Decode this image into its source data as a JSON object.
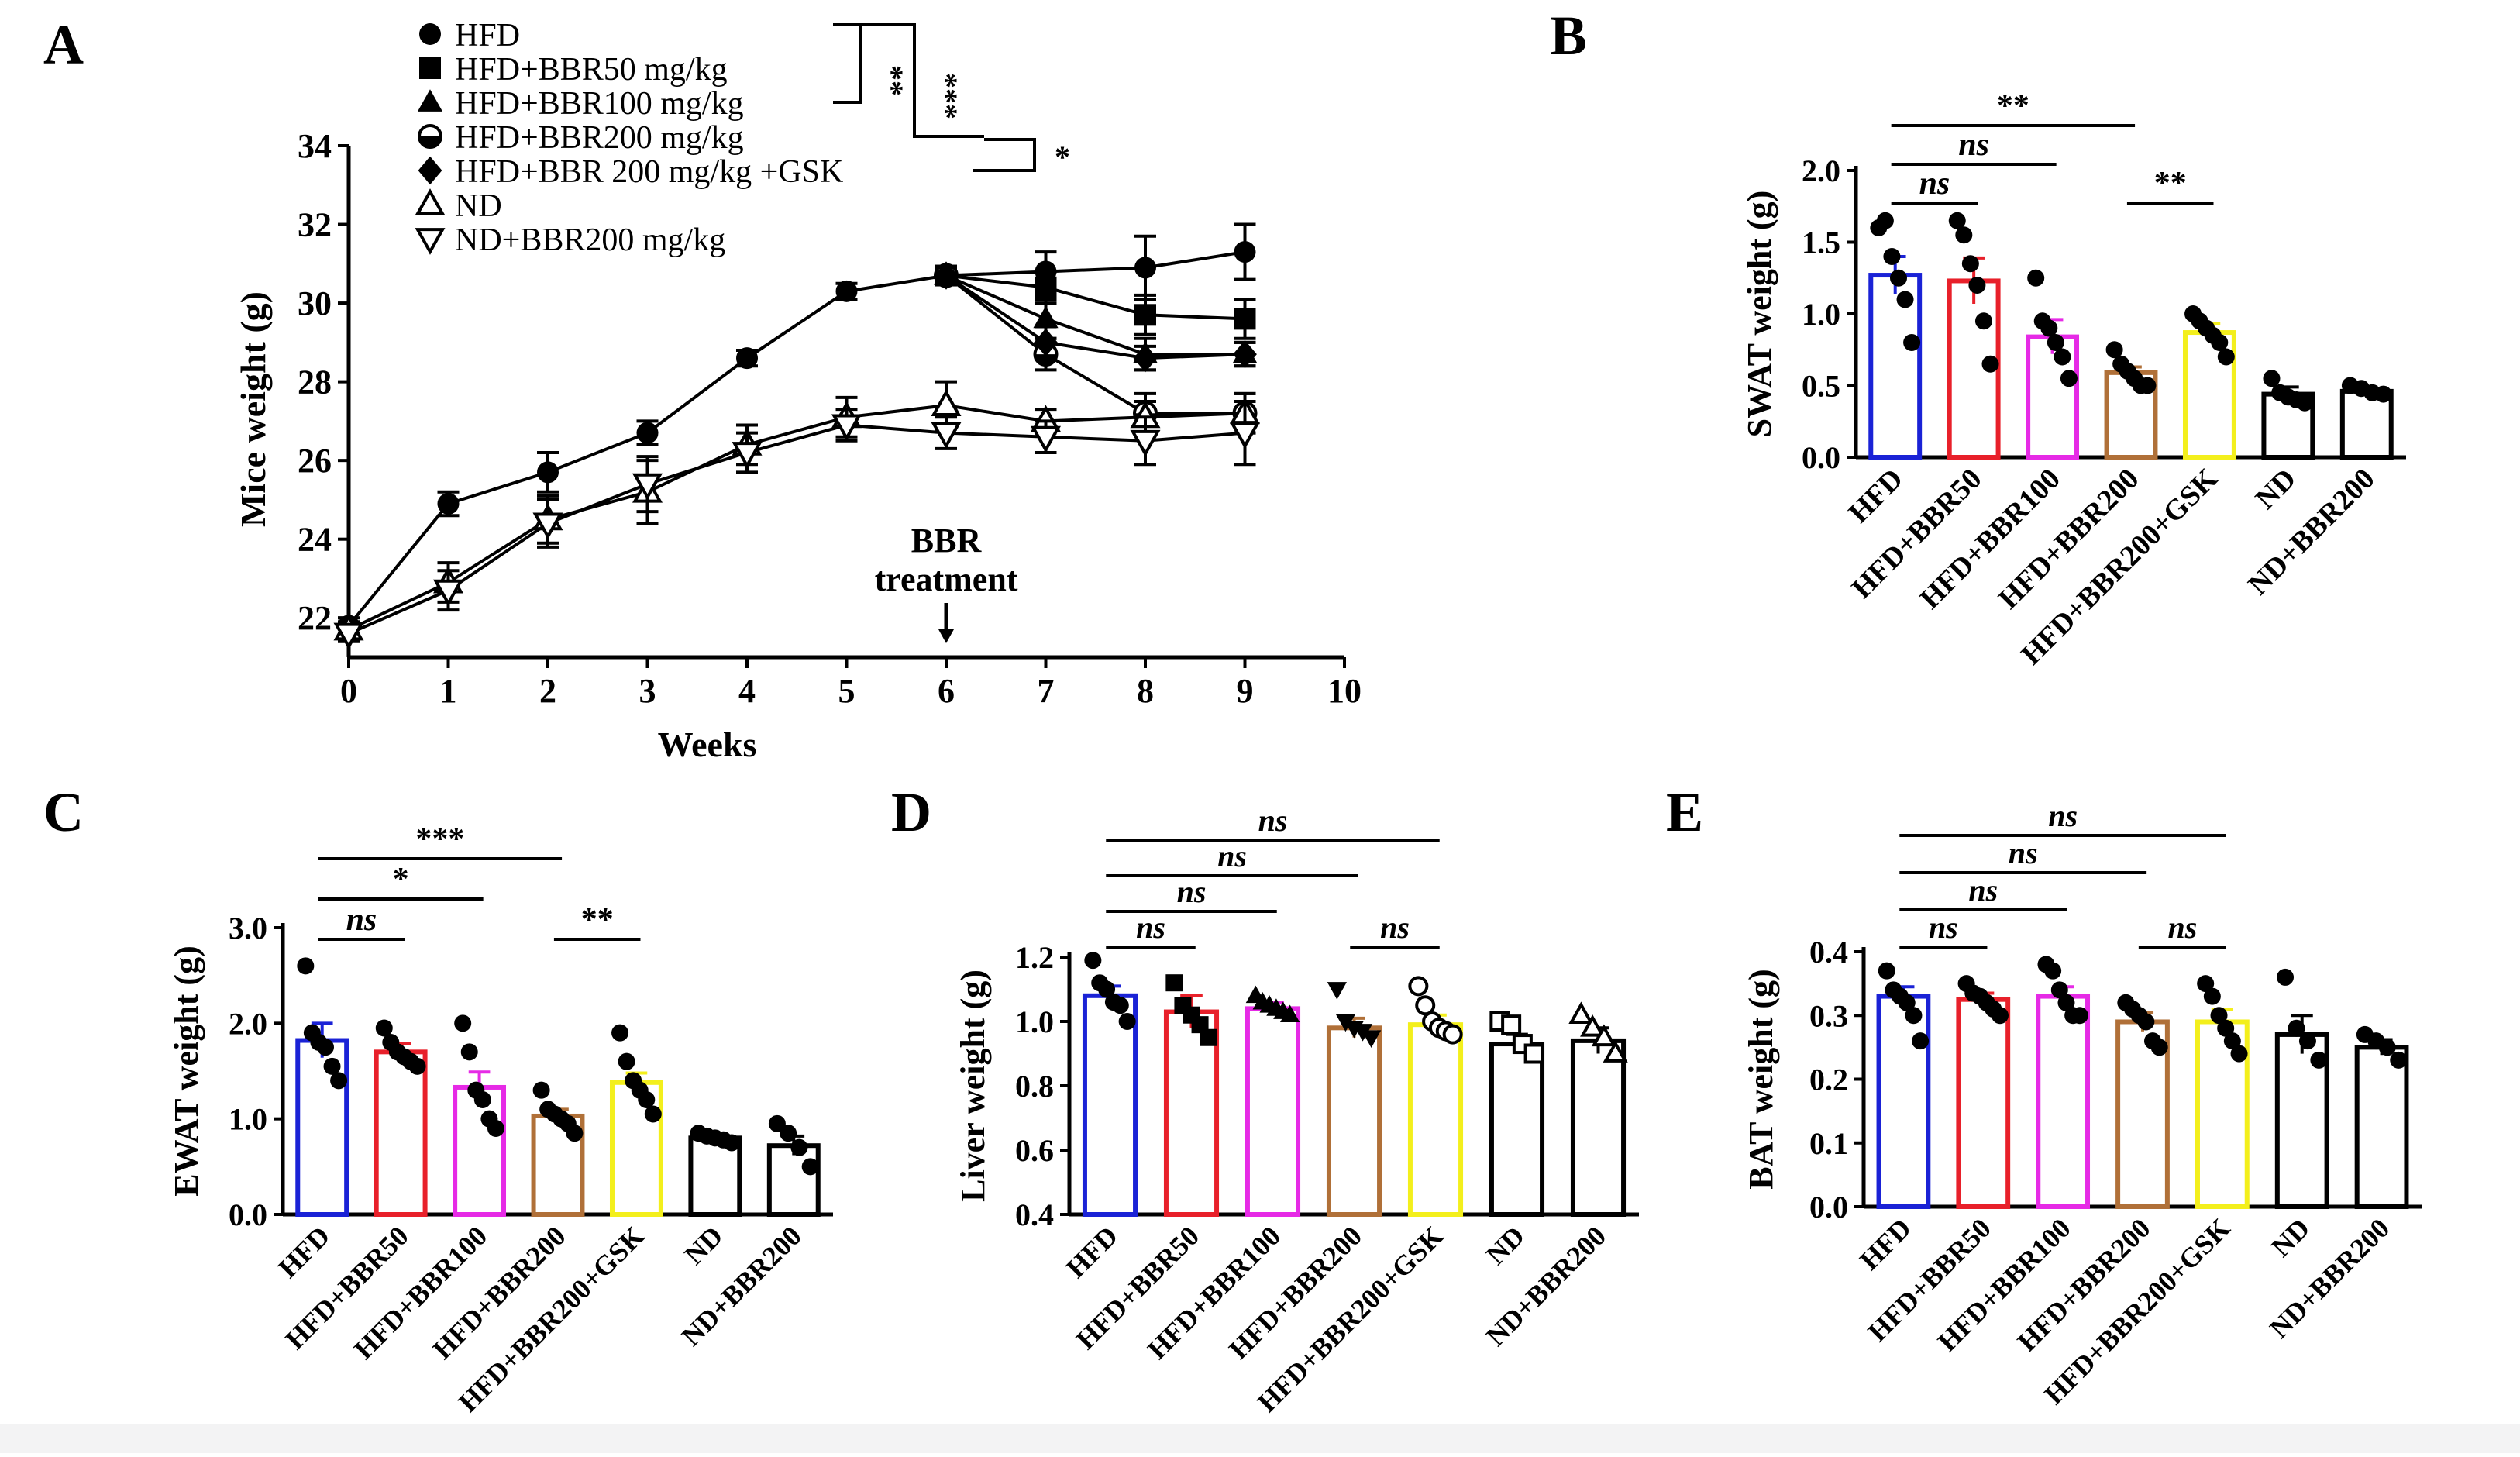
{
  "colors": {
    "ink": "#000000",
    "HFD": "#1a22d6",
    "HFD+BBR50": "#e8202a",
    "HFD+BBR100": "#e62ae6",
    "HFD+BBR200": "#b07038",
    "HFD+BBR200+GSK": "#f3ef1c",
    "ND": "#000000",
    "ND+BBR200": "#000000"
  },
  "bar_groups": [
    "HFD",
    "HFD+BBR50",
    "HFD+BBR100",
    "HFD+BBR200",
    "HFD+BBR200+GSK",
    "ND",
    "ND+BBR200"
  ],
  "panels": {
    "A": {
      "letter": "A",
      "title": "",
      "xlabel": "Weeks",
      "ylabel": "Mice weight (g)",
      "annotation": {
        "line1": "BBR",
        "line2": "treatment",
        "week": 6
      }
    },
    "B": {
      "letter": "B",
      "ylabel": "SWAT weight (g)"
    },
    "C": {
      "letter": "C",
      "ylabel": "EWAT weight (g)"
    },
    "D": {
      "letter": "D",
      "ylabel": "Liver weight (g)"
    },
    "E": {
      "letter": "E",
      "ylabel": "BAT weight (g)"
    }
  },
  "chart_data": [
    {
      "panel": "A",
      "type": "line",
      "title": "",
      "xlabel": "Weeks",
      "ylabel": "Mice weight (g)",
      "xlim": [
        0,
        10
      ],
      "ylim": [
        21,
        34
      ],
      "xticks": [
        "0",
        "1",
        "2",
        "3",
        "4",
        "5",
        "6",
        "7",
        "8",
        "9",
        "10"
      ],
      "yticks": [
        "22",
        "24",
        "26",
        "28",
        "30",
        "32",
        "34"
      ],
      "x": [
        0,
        1,
        2,
        3,
        4,
        5,
        6,
        7,
        8,
        9
      ],
      "series": [
        {
          "name": "HFD",
          "marker": "circle",
          "values": [
            21.8,
            24.9,
            25.7,
            26.7,
            28.6,
            30.3,
            30.7,
            30.8,
            30.9,
            31.3
          ],
          "errors": [
            0.2,
            0.3,
            0.5,
            0.3,
            0.2,
            0.2,
            0.2,
            0.5,
            0.8,
            0.7
          ]
        },
        {
          "name": "HFD+BBR50 mg/kg",
          "marker": "square",
          "values": [
            null,
            null,
            null,
            null,
            null,
            null,
            30.7,
            30.4,
            29.7,
            29.6
          ],
          "errors": [
            0,
            0,
            0,
            0,
            0,
            0,
            0.2,
            0.4,
            0.5,
            0.5
          ]
        },
        {
          "name": "HFD+BBR100 mg/kg",
          "marker": "triangle",
          "values": [
            null,
            null,
            null,
            null,
            null,
            null,
            30.7,
            29.6,
            28.7,
            28.7
          ],
          "errors": [
            0,
            0,
            0,
            0,
            0,
            0,
            0.2,
            0.5,
            0.4,
            0.3
          ]
        },
        {
          "name": "HFD+BBR200 mg/kg",
          "marker": "half-circle",
          "values": [
            null,
            null,
            null,
            null,
            null,
            null,
            30.7,
            28.7,
            27.2,
            27.2
          ],
          "errors": [
            0,
            0,
            0,
            0,
            0,
            0,
            0.2,
            0.4,
            0.5,
            0.5
          ]
        },
        {
          "name": "HFD+BBR 200 mg/kg +GSK",
          "marker": "diamond",
          "values": [
            null,
            null,
            null,
            null,
            null,
            null,
            30.7,
            29.0,
            28.6,
            28.7
          ],
          "errors": [
            0,
            0,
            0,
            0,
            0,
            0,
            0.2,
            0.4,
            0.3,
            0.3
          ]
        },
        {
          "name": "ND",
          "marker": "open-triangle",
          "values": [
            21.7,
            22.9,
            24.5,
            25.2,
            26.4,
            27.1,
            27.4,
            27.0,
            27.1,
            27.2
          ],
          "errors": [
            0.2,
            0.5,
            0.6,
            0.8,
            0.5,
            0.5,
            0.6,
            0.3,
            0.4,
            0.5
          ]
        },
        {
          "name": "ND+BBR200 mg/kg",
          "marker": "open-inverted-triangle",
          "values": [
            21.6,
            22.7,
            24.4,
            25.4,
            26.2,
            26.9,
            26.7,
            26.6,
            26.5,
            26.7
          ],
          "errors": [
            0.2,
            0.5,
            0.6,
            0.7,
            0.5,
            0.4,
            0.4,
            0.4,
            0.6,
            0.8
          ]
        }
      ],
      "significance": [
        {
          "label": "**",
          "between": [
            "HFD",
            "HFD+BBR100 mg/kg"
          ]
        },
        {
          "label": "***",
          "between": [
            "HFD",
            "HFD+BBR200 mg/kg"
          ]
        },
        {
          "label": "*",
          "between": [
            "HFD+BBR200 mg/kg",
            "HFD+BBR 200 mg/kg +GSK"
          ]
        }
      ]
    },
    {
      "panel": "B",
      "type": "bar",
      "ylabel": "SWAT weight (g)",
      "ylim": [
        0,
        2.0
      ],
      "yticks": [
        "0.0",
        "0.5",
        "1.0",
        "1.5",
        "2.0"
      ],
      "categories": [
        "HFD",
        "HFD+BBR50",
        "HFD+BBR100",
        "HFD+BBR200",
        "HFD+BBR200+GSK",
        "ND",
        "ND+BBR200"
      ],
      "values": [
        1.27,
        1.23,
        0.84,
        0.59,
        0.87,
        0.44,
        0.46
      ],
      "errors": [
        0.13,
        0.16,
        0.12,
        0.04,
        0.06,
        0.05,
        0.03
      ],
      "points": [
        [
          1.6,
          1.65,
          1.4,
          1.25,
          1.1,
          0.8
        ],
        [
          1.65,
          1.55,
          1.35,
          1.2,
          0.95,
          0.65
        ],
        [
          1.25,
          0.95,
          0.9,
          0.8,
          0.7,
          0.55
        ],
        [
          0.75,
          0.65,
          0.6,
          0.55,
          0.5,
          0.5
        ],
        [
          1.0,
          0.95,
          0.9,
          0.85,
          0.8,
          0.7
        ],
        [
          0.55,
          0.45,
          0.42,
          0.4,
          0.38
        ],
        [
          0.5,
          0.48,
          0.45,
          0.44
        ]
      ],
      "point_markers": [
        "filled",
        "filled",
        "filled",
        "filled",
        "filled",
        "filled",
        "filled"
      ],
      "significance": [
        {
          "label": "ns",
          "pair": [
            0,
            1
          ]
        },
        {
          "label": "ns",
          "pair": [
            0,
            2
          ]
        },
        {
          "label": "**",
          "pair": [
            0,
            3
          ]
        },
        {
          "label": "**",
          "pair": [
            3,
            4
          ]
        }
      ]
    },
    {
      "panel": "C",
      "type": "bar",
      "ylabel": "EWAT weight (g)",
      "ylim": [
        0,
        3.0
      ],
      "yticks": [
        "0.0",
        "1.0",
        "2.0",
        "3.0"
      ],
      "categories": [
        "HFD",
        "HFD+BBR50",
        "HFD+BBR100",
        "HFD+BBR200",
        "HFD+BBR200+GSK",
        "ND",
        "ND+BBR200"
      ],
      "values": [
        1.82,
        1.7,
        1.33,
        1.03,
        1.38,
        0.8,
        0.72
      ],
      "errors": [
        0.18,
        0.09,
        0.16,
        0.07,
        0.1,
        0.04,
        0.1
      ],
      "points": [
        [
          2.6,
          1.9,
          1.8,
          1.75,
          1.55,
          1.4
        ],
        [
          1.95,
          1.8,
          1.7,
          1.65,
          1.6,
          1.55
        ],
        [
          2.0,
          1.7,
          1.3,
          1.2,
          1.0,
          0.9
        ],
        [
          1.3,
          1.1,
          1.05,
          1.0,
          0.95,
          0.85
        ],
        [
          1.9,
          1.6,
          1.4,
          1.3,
          1.2,
          1.05
        ],
        [
          0.85,
          0.82,
          0.8,
          0.78,
          0.75
        ],
        [
          0.95,
          0.85,
          0.7,
          0.5
        ]
      ],
      "point_markers": [
        "filled",
        "filled",
        "filled",
        "filled",
        "filled",
        "filled",
        "filled"
      ],
      "significance": [
        {
          "label": "ns",
          "pair": [
            0,
            1
          ]
        },
        {
          "label": "*",
          "pair": [
            0,
            2
          ]
        },
        {
          "label": "***",
          "pair": [
            0,
            3
          ]
        },
        {
          "label": "**",
          "pair": [
            3,
            4
          ]
        }
      ]
    },
    {
      "panel": "D",
      "type": "bar",
      "ylabel": "Liver weight (g)",
      "ylim": [
        0.4,
        1.2
      ],
      "yticks": [
        "0.4",
        "0.6",
        "0.8",
        "1.0",
        "1.2"
      ],
      "categories": [
        "HFD",
        "HFD+BBR50",
        "HFD+BBR100",
        "HFD+BBR200",
        "HFD+BBR200+GSK",
        "ND",
        "ND+BBR200"
      ],
      "values": [
        1.08,
        1.03,
        1.04,
        0.98,
        0.99,
        0.93,
        0.94
      ],
      "errors": [
        0.03,
        0.05,
        0.02,
        0.03,
        0.03,
        0.03,
        0.04
      ],
      "points": [
        [
          1.19,
          1.12,
          1.1,
          1.06,
          1.05,
          1.0
        ],
        [
          1.12,
          1.05,
          1.02,
          0.99,
          0.95
        ],
        [
          1.08,
          1.06,
          1.05,
          1.04,
          1.03,
          1.02
        ],
        [
          1.1,
          1.0,
          0.98,
          0.97,
          0.95
        ],
        [
          1.11,
          1.05,
          1.0,
          0.98,
          0.97,
          0.96
        ],
        [
          1.0,
          0.99,
          0.93,
          0.9
        ],
        [
          1.02,
          0.98,
          0.95,
          0.9
        ]
      ],
      "point_markers": [
        "filled",
        "filled-square",
        "filled-triangle",
        "filled-inverted-triangle",
        "open-circle",
        "open-square",
        "open-triangle"
      ],
      "significance": [
        {
          "label": "ns",
          "pair": [
            0,
            1
          ]
        },
        {
          "label": "ns",
          "pair": [
            0,
            2
          ]
        },
        {
          "label": "ns",
          "pair": [
            0,
            3
          ]
        },
        {
          "label": "ns",
          "pair": [
            0,
            4
          ]
        },
        {
          "label": "ns",
          "pair": [
            3,
            4
          ]
        }
      ]
    },
    {
      "panel": "E",
      "type": "bar",
      "ylabel": "BAT weight (g)",
      "ylim": [
        0.0,
        0.4
      ],
      "yticks": [
        "0.0",
        "0.1",
        "0.2",
        "0.3",
        "0.4"
      ],
      "categories": [
        "HFD",
        "HFD+BBR50",
        "HFD+BBR100",
        "HFD+BBR200",
        "HFD+BBR200+GSK",
        "ND",
        "ND+BBR200"
      ],
      "values": [
        0.33,
        0.325,
        0.33,
        0.29,
        0.29,
        0.27,
        0.25
      ],
      "errors": [
        0.015,
        0.01,
        0.015,
        0.015,
        0.02,
        0.03,
        0.012
      ],
      "points": [
        [
          0.37,
          0.34,
          0.33,
          0.32,
          0.3,
          0.26
        ],
        [
          0.35,
          0.335,
          0.33,
          0.32,
          0.31,
          0.3
        ],
        [
          0.38,
          0.37,
          0.34,
          0.32,
          0.3,
          0.3
        ],
        [
          0.32,
          0.31,
          0.3,
          0.29,
          0.26,
          0.25
        ],
        [
          0.35,
          0.33,
          0.3,
          0.28,
          0.26,
          0.24
        ],
        [
          0.36,
          0.28,
          0.26,
          0.23
        ],
        [
          0.27,
          0.26,
          0.25,
          0.23
        ]
      ],
      "point_markers": [
        "filled",
        "filled",
        "filled",
        "filled",
        "filled",
        "filled",
        "filled"
      ],
      "significance": [
        {
          "label": "ns",
          "pair": [
            0,
            1
          ]
        },
        {
          "label": "ns",
          "pair": [
            0,
            2
          ]
        },
        {
          "label": "ns",
          "pair": [
            0,
            3
          ]
        },
        {
          "label": "ns",
          "pair": [
            0,
            4
          ]
        },
        {
          "label": "ns",
          "pair": [
            3,
            4
          ]
        }
      ]
    }
  ]
}
